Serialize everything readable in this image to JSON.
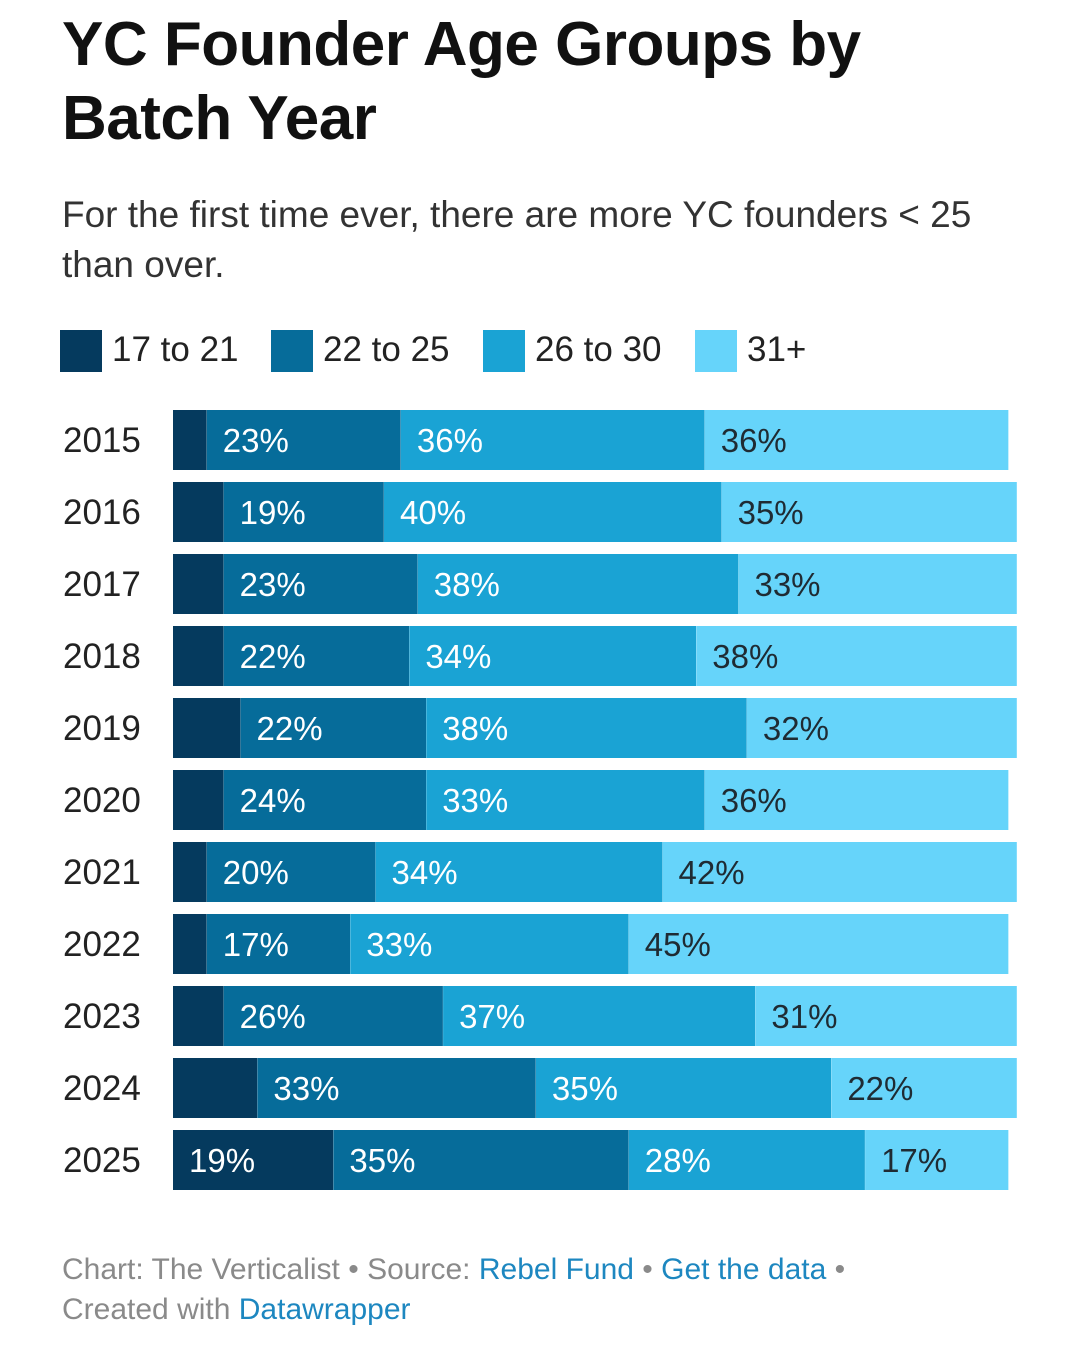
{
  "title": "YC Founder Age Groups by Batch Year",
  "subtitle": "For the first time ever, there are more YC founders < 25 than over.",
  "colors": {
    "17 to 21": "#053a5e",
    "22 to 25": "#066c9a",
    "26 to 30": "#1aa3d4",
    "31+": "#66d4fa",
    "label_dark_bg": "#ffffff",
    "label_light_bg": "#1f2b33"
  },
  "legend": [
    {
      "label": "17 to 21"
    },
    {
      "label": "22 to 25"
    },
    {
      "label": "26 to 30"
    },
    {
      "label": "31+"
    }
  ],
  "footer": {
    "chart_prefix": "Chart: The Verticalist",
    "dot1": "•",
    "source_prefix": "Source:",
    "source_link": "Rebel Fund",
    "dot2": "•",
    "data_link": "Get the data",
    "dot3": "•",
    "created_prefix": "Created with",
    "created_link": "Datawrapper"
  },
  "chart_data": {
    "type": "bar",
    "orientation": "horizontal",
    "stacked": true,
    "title": "YC Founder Age Groups by Batch Year",
    "categories": [
      "2015",
      "2016",
      "2017",
      "2018",
      "2019",
      "2020",
      "2021",
      "2022",
      "2023",
      "2024",
      "2025"
    ],
    "series": [
      {
        "name": "17 to 21",
        "values": [
          4,
          6,
          6,
          6,
          8,
          6,
          4,
          4,
          6,
          10,
          19
        ],
        "labels": [
          "",
          "",
          "",
          "",
          "",
          "",
          "",
          "",
          "",
          "",
          "19%"
        ]
      },
      {
        "name": "22 to 25",
        "values": [
          23,
          19,
          23,
          22,
          22,
          24,
          20,
          17,
          26,
          33,
          35
        ],
        "labels": [
          "23%",
          "19%",
          "23%",
          "22%",
          "22%",
          "24%",
          "20%",
          "17%",
          "26%",
          "33%",
          "35%"
        ]
      },
      {
        "name": "26 to 30",
        "values": [
          36,
          40,
          38,
          34,
          38,
          33,
          34,
          33,
          37,
          35,
          28
        ],
        "labels": [
          "36%",
          "40%",
          "38%",
          "34%",
          "38%",
          "33%",
          "34%",
          "33%",
          "37%",
          "35%",
          "28%"
        ]
      },
      {
        "name": "31+",
        "values": [
          36,
          35,
          33,
          38,
          32,
          36,
          42,
          45,
          31,
          22,
          17
        ],
        "labels": [
          "36%",
          "35%",
          "33%",
          "38%",
          "32%",
          "36%",
          "42%",
          "45%",
          "31%",
          "22%",
          "17%"
        ]
      }
    ],
    "xlim": [
      0,
      100
    ],
    "unit": "%",
    "legend_position": "top-left",
    "grid": false
  }
}
